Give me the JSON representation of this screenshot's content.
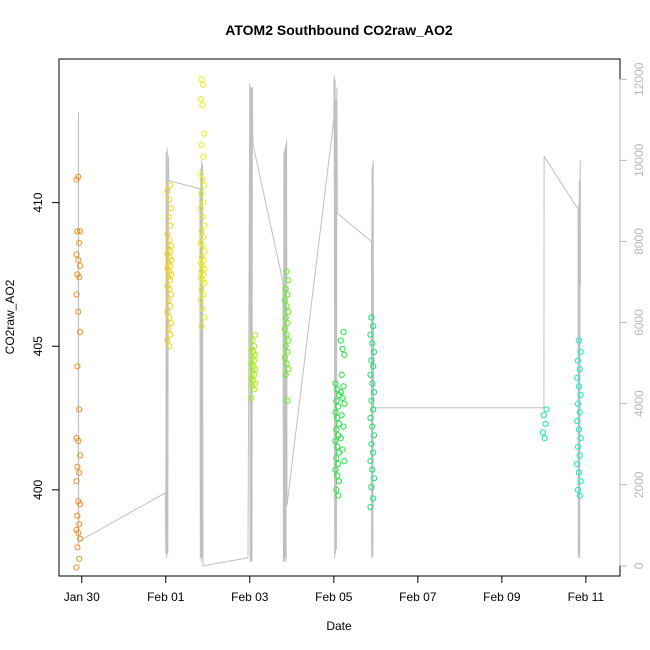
{
  "chart_data": {
    "type": "scatter",
    "title": "ATOM2 Southbound CO2raw_AO2",
    "xlabel": "Date",
    "ylabel": "CO2raw_AO2",
    "x_ticks": [
      "Jan 30",
      "Feb 01",
      "Feb 03",
      "Feb 05",
      "Feb 07",
      "Feb 09",
      "Feb 11"
    ],
    "y_ticks": [
      "400",
      "405",
      "410"
    ],
    "y_right_ticks": [
      "0",
      "2000",
      "4000",
      "6000",
      "8000",
      "10000",
      "12000"
    ],
    "xlim": [
      "2019-01-29T11:00",
      "2019-02-11T19:30"
    ],
    "ylim": [
      397,
      415
    ],
    "y_right_lim": [
      -250,
      12500
    ],
    "grid": false,
    "series": [
      {
        "kind": "points",
        "groups": [
          {
            "date": "2019-01-29T22:00",
            "color": "#f09020",
            "y": [
              410.8,
              410.9,
              409.0,
              409.0,
              408.6,
              408.2,
              408.0,
              407.8,
              407.5,
              407.4,
              406.8,
              406.2,
              405.5,
              404.3,
              402.8,
              401.8,
              401.7,
              401.2,
              400.8,
              400.6,
              400.3,
              399.6,
              399.5,
              399.1,
              398.8,
              398.6,
              398.5,
              398.3,
              398.0,
              397.6,
              397.3
            ]
          },
          {
            "date": "2019-02-01T02:00",
            "color": "#f5d21a",
            "y": [
              410.6,
              410.4,
              410.1,
              409.8,
              409.5,
              409.2,
              408.9,
              408.7,
              408.5,
              408.4,
              408.3,
              408.2,
              408.1,
              408.0,
              407.9,
              407.8,
              407.7,
              407.6,
              407.5,
              407.4,
              407.3,
              407.1,
              407.0,
              406.8,
              406.6,
              406.4,
              406.2,
              406.0,
              405.8,
              405.6,
              405.4,
              405.2,
              405.0
            ]
          },
          {
            "date": "2019-02-01T21:00",
            "color": "#e6ee1a",
            "y": [
              414.3,
              414.1,
              413.6,
              413.4,
              412.4,
              412.0,
              411.6,
              411.0,
              410.8,
              410.6,
              410.3,
              410.0,
              409.8,
              409.5,
              409.2,
              409.0,
              408.8,
              408.6,
              408.5,
              408.3,
              408.1,
              408.0,
              407.9,
              407.8,
              407.7,
              407.6,
              407.5,
              407.4,
              407.3,
              407.2,
              407.0,
              406.8,
              406.6,
              406.3,
              406.0,
              405.7
            ]
          },
          {
            "date": "2019-02-03T02:00",
            "color": "#a6f01a",
            "y": [
              405.4,
              405.2,
              405.0,
              404.9,
              404.8,
              404.7,
              404.6,
              404.5,
              404.4,
              404.3,
              404.2,
              404.1,
              404.0,
              403.9,
              403.8,
              403.7,
              403.6,
              403.5,
              403.2
            ]
          },
          {
            "date": "2019-02-03T21:00",
            "color": "#66f01a",
            "y": [
              407.6,
              407.3,
              407.0,
              406.8,
              406.6,
              406.4,
              406.2,
              406.0,
              405.8,
              405.6,
              405.4,
              405.2,
              405.0,
              404.8,
              404.6,
              404.4,
              404.2,
              404.0,
              403.1
            ]
          },
          {
            "date": "2019-02-05T02:00",
            "color": "#20e840",
            "y": [
              403.7,
              403.5,
              403.3,
              403.1,
              402.9,
              402.7,
              402.5,
              402.3,
              402.1,
              401.9,
              401.7,
              401.5,
              401.3,
              401.1,
              400.9,
              400.7,
              400.5,
              400.3,
              400.0,
              399.8
            ]
          },
          {
            "date": "2019-02-05T05:00",
            "color": "#20e840",
            "y": [
              405.5,
              405.2,
              404.9,
              404.7,
              404.0,
              403.6,
              403.4,
              403.2,
              403.0,
              402.6,
              402.2,
              401.8,
              401.4,
              401.0
            ]
          },
          {
            "date": "2019-02-05T22:00",
            "color": "#10e868",
            "y": [
              406.0,
              405.7,
              405.4,
              405.1,
              404.8,
              404.5,
              404.3,
              404.0,
              403.7,
              403.4,
              403.1,
              402.8,
              402.5,
              402.2,
              401.9,
              401.6,
              401.3,
              401.0,
              400.7,
              400.4,
              400.1,
              399.7,
              399.4
            ]
          },
          {
            "date": "2019-02-10T00:30",
            "color": "#10e8a8",
            "y": [
              402.8,
              402.6,
              402.3,
              402.0,
              401.8
            ]
          },
          {
            "date": "2019-02-10T20:00",
            "color": "#10f0c8",
            "y": [
              405.2,
              404.8,
              404.5,
              404.2,
              403.9,
              403.6,
              403.3,
              403.0,
              402.7,
              402.4,
              402.1,
              401.8,
              401.5,
              401.2,
              400.9,
              400.6,
              400.3,
              400.0,
              399.8
            ]
          }
        ]
      },
      {
        "kind": "line",
        "axis": "right",
        "color": "#c0c0c0",
        "points": [
          [
            "2019-01-29T22:00",
            500
          ],
          [
            "2019-01-29T22:05",
            11000
          ],
          [
            "2019-01-29T22:08",
            11200
          ],
          [
            "2019-01-29T22:12",
            600
          ],
          [
            "2019-01-31T23:45",
            1800
          ],
          [
            "2019-02-01T00:00",
            300
          ],
          [
            "2019-02-01T00:15",
            10200
          ],
          [
            "2019-02-01T00:35",
            200
          ],
          [
            "2019-02-01T00:50",
            10300
          ],
          [
            "2019-02-01T01:10",
            300
          ],
          [
            "2019-02-01T01:30",
            10100
          ],
          [
            "2019-02-01T01:45",
            9500
          ],
          [
            "2019-02-01T19:30",
            9300
          ],
          [
            "2019-02-01T19:45",
            200
          ],
          [
            "2019-02-01T20:00",
            9800
          ],
          [
            "2019-02-01T20:15",
            100
          ],
          [
            "2019-02-01T20:30",
            10000
          ],
          [
            "2019-02-01T20:45",
            200
          ],
          [
            "2019-02-01T21:00",
            9900
          ],
          [
            "2019-02-01T21:15",
            0
          ],
          [
            "2019-02-02T23:00",
            200
          ],
          [
            "2019-02-03T00:00",
            11900
          ],
          [
            "2019-02-03T00:15",
            100
          ],
          [
            "2019-02-03T00:30",
            11800
          ],
          [
            "2019-02-03T00:45",
            100
          ],
          [
            "2019-02-03T01:00",
            11800
          ],
          [
            "2019-02-03T01:15",
            100
          ],
          [
            "2019-02-03T01:30",
            11800
          ],
          [
            "2019-02-03T01:45",
            10400
          ],
          [
            "2019-02-03T19:00",
            7000
          ],
          [
            "2019-02-03T19:15",
            100
          ],
          [
            "2019-02-03T19:30",
            10200
          ],
          [
            "2019-02-03T19:45",
            100
          ],
          [
            "2019-02-03T20:00",
            10300
          ],
          [
            "2019-02-03T20:15",
            200
          ],
          [
            "2019-02-03T20:30",
            10400
          ],
          [
            "2019-02-03T20:45",
            100
          ],
          [
            "2019-02-03T21:00",
            10500
          ],
          [
            "2019-02-03T21:15",
            1500
          ],
          [
            "2019-02-05T00:00",
            11000
          ],
          [
            "2019-02-05T00:10",
            12100
          ],
          [
            "2019-02-05T00:20",
            8500
          ],
          [
            "2019-02-05T00:30",
            200
          ],
          [
            "2019-02-05T00:45",
            12000
          ],
          [
            "2019-02-05T01:00",
            300
          ],
          [
            "2019-02-05T01:15",
            11500
          ],
          [
            "2019-02-05T01:30",
            400
          ],
          [
            "2019-02-05T01:45",
            11800
          ],
          [
            "2019-02-05T02:00",
            8700
          ],
          [
            "2019-02-05T21:30",
            8000
          ],
          [
            "2019-02-05T21:40",
            200
          ],
          [
            "2019-02-05T21:50",
            9800
          ],
          [
            "2019-02-05T22:00",
            300
          ],
          [
            "2019-02-05T22:10",
            9900
          ],
          [
            "2019-02-05T22:20",
            200
          ],
          [
            "2019-02-05T22:30",
            10000
          ],
          [
            "2019-02-05T22:40",
            3900
          ],
          [
            "2019-02-10T00:00",
            3900
          ],
          [
            "2019-02-10T00:10",
            10100
          ],
          [
            "2019-02-10T19:30",
            8800
          ],
          [
            "2019-02-10T19:40",
            200
          ],
          [
            "2019-02-10T19:50",
            8900
          ],
          [
            "2019-02-10T20:00",
            300
          ],
          [
            "2019-02-10T20:15",
            9500
          ],
          [
            "2019-02-10T20:30",
            200
          ],
          [
            "2019-02-10T20:45",
            10000
          ],
          [
            "2019-02-10T21:00",
            6900
          ]
        ]
      }
    ]
  }
}
